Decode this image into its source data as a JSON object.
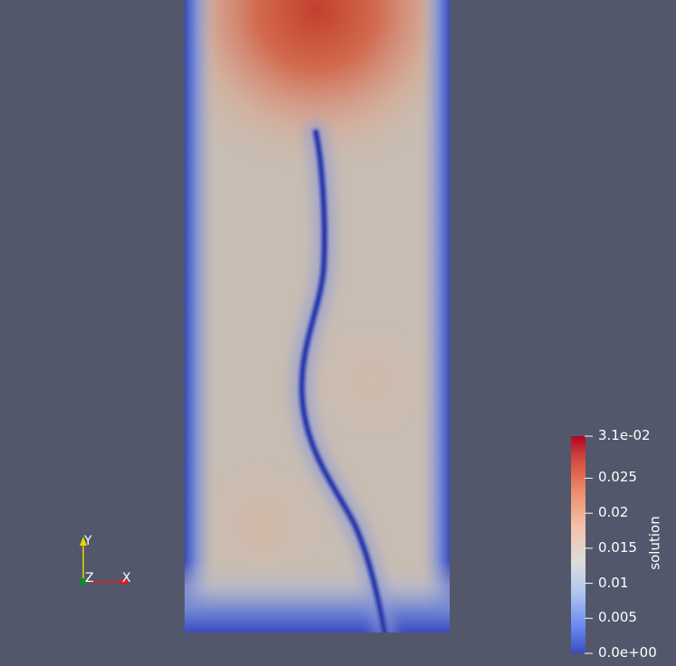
{
  "colors": {
    "background": "#52576b",
    "cold": "#3b4cc0",
    "neutral": "#c3bfb8",
    "warm": "#c0392b",
    "hot": "#b40426",
    "axis_x": "#e41a1c",
    "axis_y": "#e6d800",
    "axis_z": "#0f8a2e"
  },
  "colorbar": {
    "title": "solution",
    "min_value": 0.0,
    "max_value": 0.031,
    "ticks": [
      {
        "value": 0.031,
        "label": "3.1e-02"
      },
      {
        "value": 0.025,
        "label": "0.025"
      },
      {
        "value": 0.02,
        "label": "0.02"
      },
      {
        "value": 0.015,
        "label": "0.015"
      },
      {
        "value": 0.01,
        "label": "0.01"
      },
      {
        "value": 0.005,
        "label": "0.005"
      },
      {
        "value": 0.0,
        "label": "0.0e+00"
      }
    ]
  },
  "axes_triad": {
    "x_label": "X",
    "y_label": "Y",
    "z_label": "Z"
  }
}
